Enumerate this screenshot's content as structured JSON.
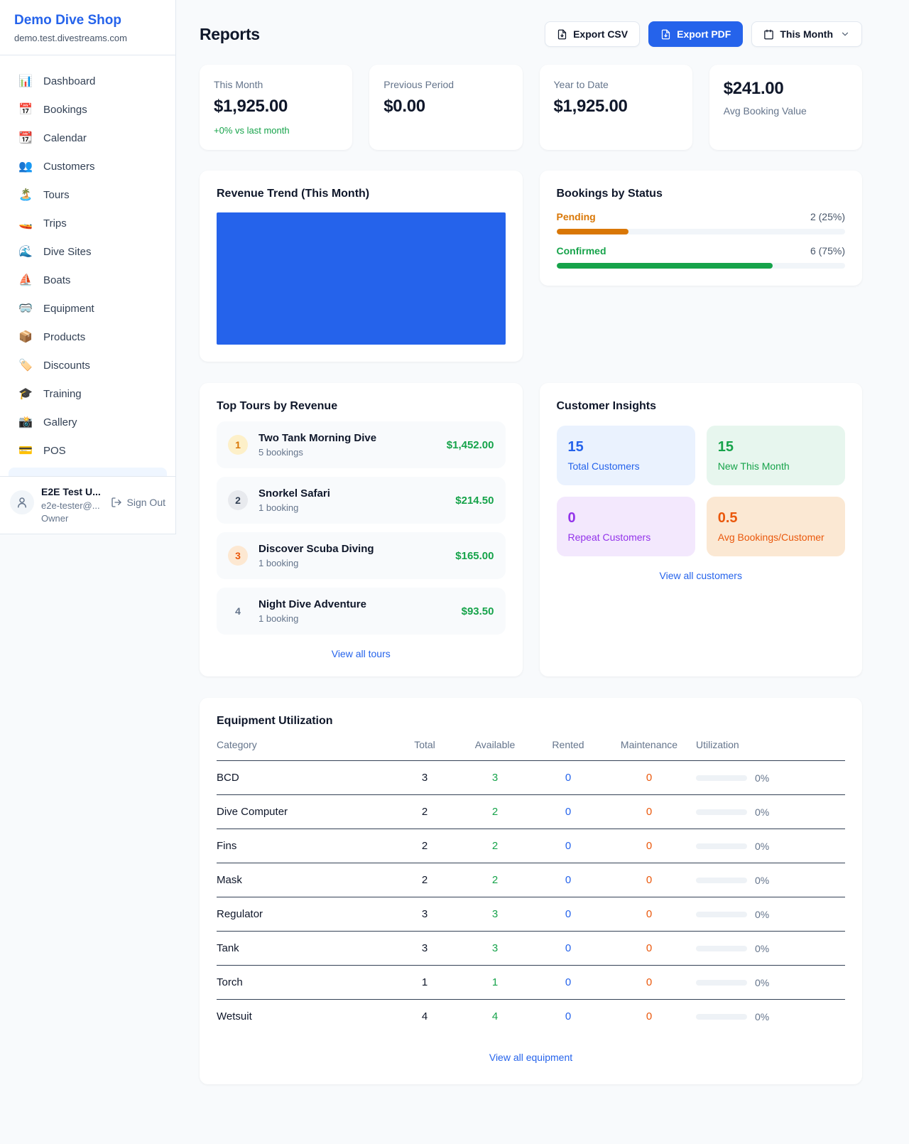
{
  "sidebar": {
    "shop_name": "Demo Dive Shop",
    "shop_domain": "demo.test.divestreams.com",
    "items": [
      {
        "name": "dashboard",
        "icon": "📊",
        "label": "Dashboard"
      },
      {
        "name": "bookings",
        "icon": "📅",
        "label": "Bookings"
      },
      {
        "name": "calendar",
        "icon": "📆",
        "label": "Calendar"
      },
      {
        "name": "customers",
        "icon": "👥",
        "label": "Customers"
      },
      {
        "name": "tours",
        "icon": "🏝️",
        "label": "Tours"
      },
      {
        "name": "trips",
        "icon": "🚤",
        "label": "Trips"
      },
      {
        "name": "dive-sites",
        "icon": "🌊",
        "label": "Dive Sites"
      },
      {
        "name": "boats",
        "icon": "⛵",
        "label": "Boats"
      },
      {
        "name": "equipment",
        "icon": "🥽",
        "label": "Equipment"
      },
      {
        "name": "products",
        "icon": "📦",
        "label": "Products"
      },
      {
        "name": "discounts",
        "icon": "🏷️",
        "label": "Discounts"
      },
      {
        "name": "training",
        "icon": "🎓",
        "label": "Training"
      },
      {
        "name": "gallery",
        "icon": "📸",
        "label": "Gallery"
      },
      {
        "name": "pos",
        "icon": "💳",
        "label": "POS"
      }
    ],
    "user": {
      "name": "E2E Test U...",
      "email": "e2e-tester@...",
      "role": "Owner",
      "sign_out": "Sign Out"
    }
  },
  "header": {
    "title": "Reports",
    "export_csv": "Export CSV",
    "export_pdf": "Export PDF",
    "period": "This Month"
  },
  "stats": {
    "this_month": {
      "label": "This Month",
      "value": "$1,925.00",
      "delta": "+0% vs last month"
    },
    "previous_period": {
      "label": "Previous Period",
      "value": "$0.00"
    },
    "year_to_date": {
      "label": "Year to Date",
      "value": "$1,925.00"
    },
    "avg_booking": {
      "value": "$241.00",
      "label": "Avg Booking Value"
    }
  },
  "revenue_trend": {
    "title": "Revenue Trend (This Month)",
    "fill_color": "#2563eb"
  },
  "chart_data": [
    {
      "type": "area",
      "title": "Revenue Trend (This Month)",
      "note": "solid filled plot area, no visible axes or labels",
      "color": "#2563eb"
    },
    {
      "type": "bar",
      "title": "Bookings by Status",
      "categories": [
        "Pending",
        "Confirmed"
      ],
      "values": [
        2,
        6
      ],
      "percents": [
        25,
        75
      ],
      "colors": [
        "#d97706",
        "#16a34a"
      ]
    }
  ],
  "bookings_status": {
    "title": "Bookings by Status",
    "rows": [
      {
        "key": "pending",
        "label": "Pending",
        "count": "2 (25%)",
        "percent": 25,
        "color": "#d97706"
      },
      {
        "key": "confirmed",
        "label": "Confirmed",
        "count": "6 (75%)",
        "percent": 75,
        "color": "#16a34a"
      }
    ]
  },
  "top_tours": {
    "title": "Top Tours by Revenue",
    "link": "View all tours",
    "rows": [
      {
        "rank": "1",
        "name": "Two Tank Morning Dive",
        "bookings": "5 bookings",
        "revenue": "$1,452.00"
      },
      {
        "rank": "2",
        "name": "Snorkel Safari",
        "bookings": "1 booking",
        "revenue": "$214.50"
      },
      {
        "rank": "3",
        "name": "Discover Scuba Diving",
        "bookings": "1 booking",
        "revenue": "$165.00"
      },
      {
        "rank": "4",
        "name": "Night Dive Adventure",
        "bookings": "1 booking",
        "revenue": "$93.50"
      }
    ]
  },
  "customer_insights": {
    "title": "Customer Insights",
    "link": "View all customers",
    "cards": [
      {
        "value": "15",
        "label": "Total Customers",
        "theme": "blue"
      },
      {
        "value": "15",
        "label": "New This Month",
        "theme": "green"
      },
      {
        "value": "0",
        "label": "Repeat Customers",
        "theme": "purple"
      },
      {
        "value": "0.5",
        "label": "Avg Bookings/Customer",
        "theme": "orange"
      }
    ]
  },
  "equipment": {
    "title": "Equipment Utilization",
    "link": "View all equipment",
    "headers": [
      "Category",
      "Total",
      "Available",
      "Rented",
      "Maintenance",
      "Utilization"
    ],
    "rows": [
      {
        "category": "BCD",
        "total": "3",
        "available": "3",
        "rented": "0",
        "maintenance": "0",
        "utilization": "0%",
        "percent": 0
      },
      {
        "category": "Dive Computer",
        "total": "2",
        "available": "2",
        "rented": "0",
        "maintenance": "0",
        "utilization": "0%",
        "percent": 0
      },
      {
        "category": "Fins",
        "total": "2",
        "available": "2",
        "rented": "0",
        "maintenance": "0",
        "utilization": "0%",
        "percent": 0
      },
      {
        "category": "Mask",
        "total": "2",
        "available": "2",
        "rented": "0",
        "maintenance": "0",
        "utilization": "0%",
        "percent": 0
      },
      {
        "category": "Regulator",
        "total": "3",
        "available": "3",
        "rented": "0",
        "maintenance": "0",
        "utilization": "0%",
        "percent": 0
      },
      {
        "category": "Tank",
        "total": "3",
        "available": "3",
        "rented": "0",
        "maintenance": "0",
        "utilization": "0%",
        "percent": 0
      },
      {
        "category": "Torch",
        "total": "1",
        "available": "1",
        "rented": "0",
        "maintenance": "0",
        "utilization": "0%",
        "percent": 0
      },
      {
        "category": "Wetsuit",
        "total": "4",
        "available": "4",
        "rented": "0",
        "maintenance": "0",
        "utilization": "0%",
        "percent": 0
      }
    ]
  }
}
